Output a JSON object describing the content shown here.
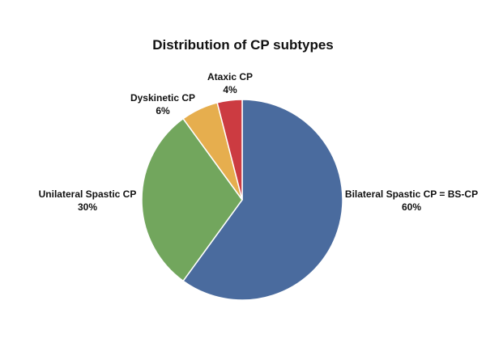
{
  "chart_data": {
    "type": "pie",
    "title": "Distribution of CP subtypes",
    "slices": [
      {
        "label": "Bilateral Spastic CP = BS-CP",
        "value": 60,
        "value_label": "60%",
        "color": "#4a6b9e"
      },
      {
        "label": "Unilateral Spastic CP",
        "value": 30,
        "value_label": "30%",
        "color": "#72a65d"
      },
      {
        "label": "Dyskinetic CP",
        "value": 6,
        "value_label": "6%",
        "color": "#e6ae4e"
      },
      {
        "label": "Ataxic CP",
        "value": 4,
        "value_label": "4%",
        "color": "#cc3b41"
      }
    ]
  }
}
